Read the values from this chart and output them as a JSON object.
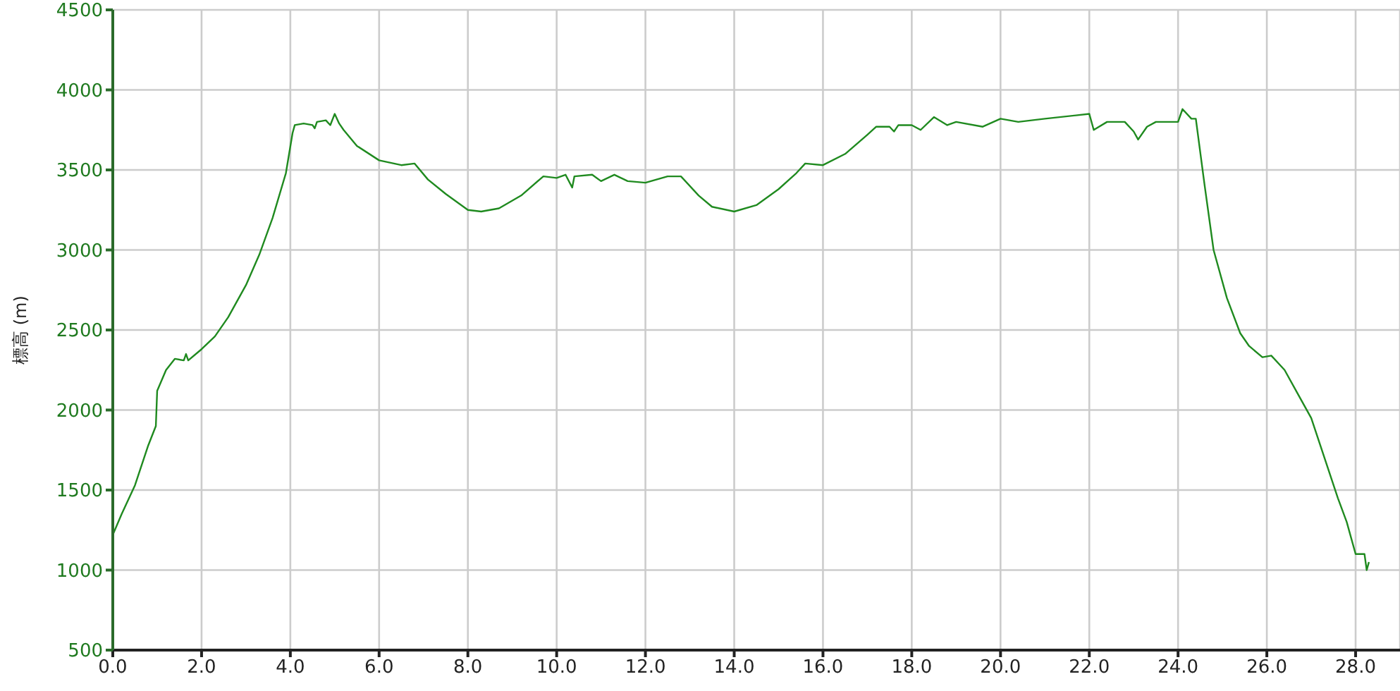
{
  "chart_data": {
    "type": "line",
    "ylabel": "標高 (m)",
    "grid": true,
    "marker": "none",
    "line_style": "solid",
    "xlim": [
      0,
      29
    ],
    "ylim": [
      500,
      4500
    ],
    "xticks": [
      {
        "value": 0,
        "label": "0.0"
      },
      {
        "value": 2,
        "label": "2.0"
      },
      {
        "value": 4,
        "label": "4.0"
      },
      {
        "value": 6,
        "label": "6.0"
      },
      {
        "value": 8,
        "label": "8.0"
      },
      {
        "value": 10,
        "label": "10.0"
      },
      {
        "value": 12,
        "label": "12.0"
      },
      {
        "value": 14,
        "label": "14.0"
      },
      {
        "value": 16,
        "label": "16.0"
      },
      {
        "value": 18,
        "label": "18.0"
      },
      {
        "value": 20,
        "label": "20.0"
      },
      {
        "value": 22,
        "label": "22.0"
      },
      {
        "value": 24,
        "label": "24.0"
      },
      {
        "value": 26,
        "label": "26.0"
      },
      {
        "value": 28,
        "label": "28.0"
      }
    ],
    "yticks": [
      500,
      1000,
      1500,
      2000,
      2500,
      3000,
      3500,
      4000,
      4500
    ],
    "series": [
      {
        "color": "#1f8a1f",
        "x": [
          0,
          0.2,
          0.5,
          0.8,
          0.97,
          1.0,
          1.2,
          1.4,
          1.6,
          1.65,
          1.7,
          2.0,
          2.3,
          2.6,
          3.0,
          3.3,
          3.6,
          3.9,
          4.05,
          4.1,
          4.3,
          4.5,
          4.55,
          4.6,
          4.8,
          4.9,
          5.0,
          5.1,
          5.2,
          5.5,
          6.0,
          6.5,
          6.8,
          7.1,
          7.5,
          8.0,
          8.3,
          8.7,
          9.2,
          9.7,
          10.0,
          10.2,
          10.35,
          10.4,
          10.8,
          11.0,
          11.3,
          11.6,
          12.0,
          12.5,
          12.8,
          13.2,
          13.5,
          14.0,
          14.5,
          15.0,
          15.4,
          15.6,
          16.0,
          16.5,
          17.0,
          17.2,
          17.5,
          17.6,
          17.7,
          18.0,
          18.2,
          18.5,
          18.8,
          19.0,
          19.6,
          20.0,
          20.4,
          21.0,
          22.0,
          22.1,
          22.4,
          22.8,
          23.0,
          23.1,
          23.3,
          23.5,
          24.0,
          24.1,
          24.3,
          24.4,
          24.6,
          24.8,
          25.1,
          25.4,
          25.6,
          25.9,
          26.1,
          26.4,
          26.7,
          27.0,
          27.3,
          27.6,
          27.8,
          28.0,
          28.2,
          28.25,
          28.3
        ],
        "values": [
          1220,
          1350,
          1530,
          1780,
          1900,
          2120,
          2250,
          2320,
          2310,
          2350,
          2310,
          2380,
          2460,
          2580,
          2780,
          2970,
          3200,
          3480,
          3730,
          3780,
          3790,
          3780,
          3760,
          3800,
          3810,
          3780,
          3850,
          3790,
          3750,
          3650,
          3560,
          3530,
          3540,
          3440,
          3350,
          3250,
          3240,
          3260,
          3340,
          3460,
          3450,
          3470,
          3390,
          3460,
          3470,
          3430,
          3470,
          3430,
          3420,
          3460,
          3460,
          3340,
          3270,
          3240,
          3280,
          3380,
          3480,
          3540,
          3530,
          3600,
          3720,
          3770,
          3770,
          3740,
          3780,
          3780,
          3750,
          3830,
          3780,
          3800,
          3770,
          3820,
          3800,
          3820,
          3850,
          3750,
          3800,
          3800,
          3740,
          3690,
          3770,
          3800,
          3800,
          3880,
          3820,
          3820,
          3400,
          3000,
          2700,
          2480,
          2400,
          2330,
          2340,
          2250,
          2100,
          1950,
          1700,
          1450,
          1300,
          1100,
          1100,
          1000,
          1050
        ]
      }
    ]
  }
}
